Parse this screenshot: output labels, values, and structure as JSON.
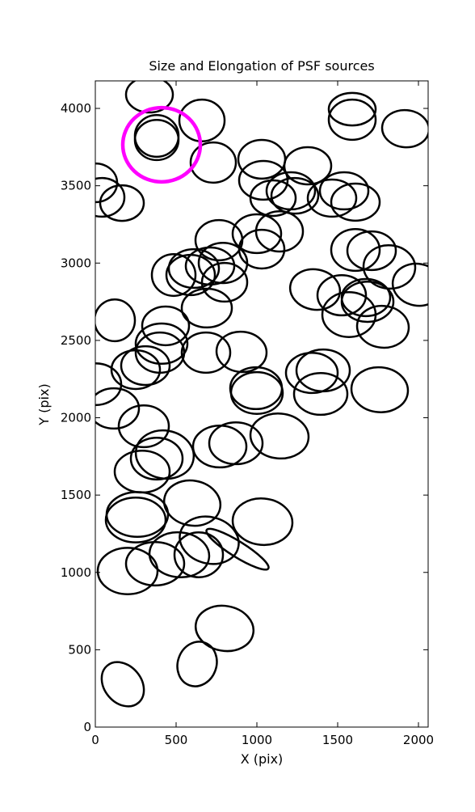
{
  "chart_data": {
    "type": "ellipse",
    "title": "Size and Elongation of PSF sources",
    "xlabel": "X (pix)",
    "ylabel": "Y (pix)",
    "xlim": [
      0,
      2060
    ],
    "ylim": [
      0,
      4178
    ],
    "xticks": [
      0,
      500,
      1000,
      1500,
      2000
    ],
    "yticks": [
      0,
      500,
      1000,
      1500,
      2000,
      2500,
      3000,
      3500,
      4000
    ],
    "ellipses": {
      "color": "#000000",
      "x": [
        170,
        630,
        800,
        200,
        370,
        520,
        640,
        705,
        880,
        1035,
        250,
        260,
        600,
        290,
        380,
        430,
        770,
        870,
        1140,
        300,
        115,
        0,
        250,
        310,
        400,
        410,
        435,
        685,
        905,
        995,
        1000,
        1340,
        1410,
        1395,
        1760,
        120,
        690,
        485,
        590,
        610,
        710,
        800,
        790,
        765,
        1000,
        1030,
        1140,
        1360,
        1525,
        1570,
        1685,
        1675,
        1780,
        1820,
        1995,
        1610,
        1710,
        1100,
        1235,
        1315,
        1465,
        1540,
        1610,
        1040,
        1030,
        1210,
        730,
        660,
        335,
        380,
        380,
        1590,
        1590,
        1920,
        0,
        40,
        165
      ],
      "y": [
        277,
        408,
        638,
        1009,
        1056,
        1114,
        1114,
        1208,
        1150,
        1328,
        1339,
        1375,
        1448,
        1652,
        1736,
        1762,
        1814,
        1835,
        1882,
        1945,
        2060,
        2217,
        2311,
        2337,
        2421,
        2479,
        2594,
        2421,
        2426,
        2191,
        2160,
        2290,
        2306,
        2154,
        2181,
        2630,
        2709,
        2923,
        2923,
        2965,
        2981,
        2876,
        3001,
        3148,
        3190,
        3090,
        3205,
        2829,
        2792,
        2667,
        2750,
        2777,
        2588,
        2975,
        2860,
        3085,
        3080,
        3420,
        3435,
        3629,
        3420,
        3467,
        3394,
        3535,
        3671,
        3467,
        3650,
        3922,
        4089,
        3822,
        3796,
        3995,
        3927,
        3869,
        3519,
        3425,
        3388
      ],
      "width": [
        300,
        280,
        360,
        370,
        360,
        370,
        300,
        370,
        450,
        370,
        370,
        380,
        350,
        340,
        320,
        360,
        330,
        330,
        360,
        310,
        310,
        320,
        300,
        300,
        300,
        320,
        290,
        300,
        310,
        320,
        320,
        320,
        330,
        330,
        350,
        250,
        310,
        270,
        300,
        310,
        300,
        280,
        300,
        290,
        300,
        280,
        290,
        310,
        300,
        330,
        320,
        300,
        320,
        320,
        310,
        300,
        300,
        280,
        290,
        290,
        300,
        300,
        300,
        300,
        290,
        300,
        280,
        280,
        290,
        270,
        270,
        290,
        290,
        290,
        270,
        280,
        270
      ],
      "height": [
        240,
        250,
        290,
        300,
        280,
        290,
        290,
        300,
        100,
        300,
        290,
        290,
        290,
        270,
        270,
        310,
        270,
        270,
        290,
        270,
        260,
        270,
        250,
        250,
        260,
        260,
        250,
        260,
        260,
        270,
        270,
        260,
        270,
        270,
        290,
        270,
        250,
        270,
        260,
        250,
        240,
        250,
        260,
        260,
        250,
        250,
        260,
        260,
        260,
        290,
        260,
        240,
        270,
        280,
        270,
        270,
        250,
        230,
        230,
        240,
        240,
        240,
        240,
        250,
        250,
        240,
        260,
        270,
        230,
        270,
        260,
        210,
        260,
        240,
        250,
        250,
        230
      ],
      "angle": [
        -50,
        70,
        -10,
        0,
        0,
        -5,
        0,
        -15,
        -32,
        -5,
        0,
        0,
        -10,
        0,
        0,
        -10,
        0,
        0,
        -5,
        0,
        0,
        0,
        0,
        0,
        0,
        0,
        0,
        0,
        -5,
        0,
        0,
        0,
        0,
        0,
        -5,
        0,
        0,
        0,
        0,
        0,
        0,
        0,
        0,
        0,
        0,
        0,
        0,
        -10,
        0,
        0,
        0,
        0,
        -5,
        -5,
        -10,
        0,
        0,
        0,
        0,
        0,
        0,
        0,
        0,
        0,
        0,
        0,
        0,
        0,
        0,
        0,
        0,
        0,
        0,
        -5,
        0,
        0,
        0
      ]
    },
    "highlight": {
      "color": "#ff00ff",
      "x": 410,
      "y": 3765,
      "width": 480,
      "height": 480,
      "angle": 0
    }
  }
}
